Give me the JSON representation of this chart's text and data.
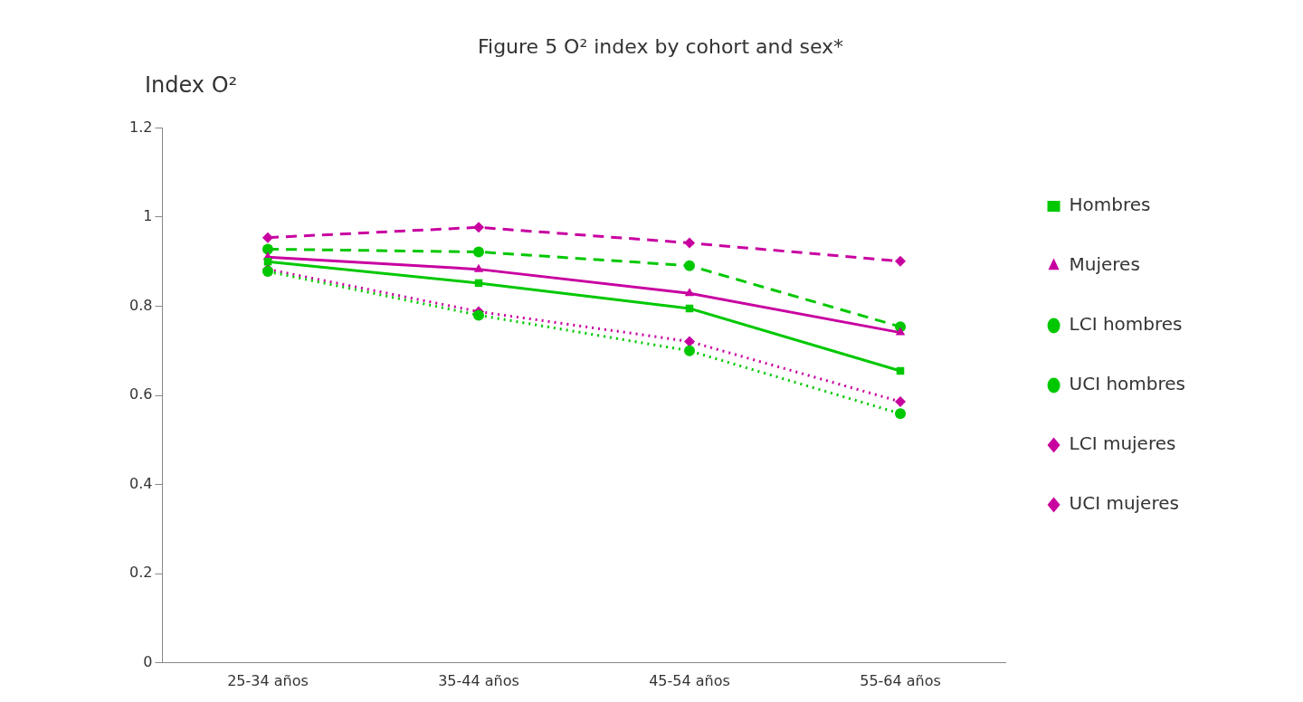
{
  "chart_data": {
    "type": "line",
    "title": "Figure 5 O² index by cohort and sex*",
    "ylabel": "Index O²",
    "categories": [
      "25-34 años",
      "35-44 años",
      "45-54 años",
      "55-64 años"
    ],
    "ylim": [
      0,
      1.2
    ],
    "yticks": [
      0,
      0.2,
      0.4,
      0.6,
      0.8,
      1,
      1.2
    ],
    "grid": false,
    "legend": "right",
    "series": [
      {
        "name": "Hombres",
        "color": "#00c800",
        "marker": "square",
        "line_style": "solid",
        "values": [
          0.9,
          0.852,
          0.795,
          0.655
        ]
      },
      {
        "name": "Mujeres",
        "color": "#c800a0",
        "marker": "triangle",
        "line_style": "solid",
        "values": [
          0.91,
          0.883,
          0.829,
          0.741
        ]
      },
      {
        "name": "LCI hombres",
        "color": "#00c800",
        "marker": "circle",
        "line_style": "dotted",
        "values": [
          0.878,
          0.78,
          0.7,
          0.559
        ]
      },
      {
        "name": "UCI hombres",
        "color": "#00c800",
        "marker": "circle",
        "line_style": "dashed",
        "values": [
          0.928,
          0.922,
          0.891,
          0.754
        ]
      },
      {
        "name": "LCI mujeres",
        "color": "#c800a0",
        "marker": "diamond",
        "line_style": "dotted",
        "values": [
          0.883,
          0.788,
          0.721,
          0.586
        ]
      },
      {
        "name": "UCI mujeres",
        "color": "#c800a0",
        "marker": "diamond",
        "line_style": "dashed",
        "values": [
          0.954,
          0.977,
          0.942,
          0.901
        ]
      }
    ]
  }
}
